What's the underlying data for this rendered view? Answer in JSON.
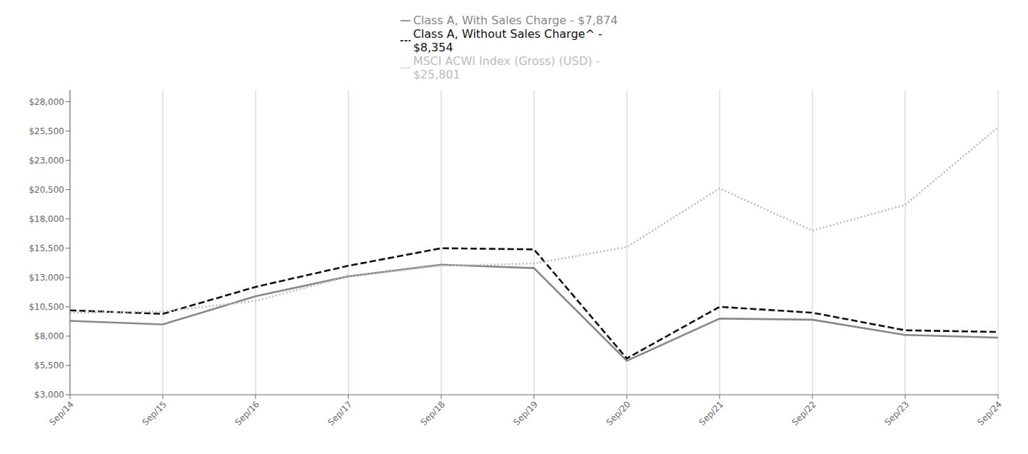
{
  "chart_data": {
    "type": "line",
    "categories": [
      "Sep/14",
      "Sep/15",
      "Sep/16",
      "Sep/17",
      "Sep/18",
      "Sep/19",
      "Sep/20",
      "Sep/21",
      "Sep/22",
      "Sep/23",
      "Sep/24"
    ],
    "series": [
      {
        "name": "Class A, With Sales Charge - $7,874",
        "color": "#888888",
        "line_style": "solid",
        "values": [
          9300,
          9000,
          11400,
          13100,
          14100,
          13800,
          5900,
          9500,
          9400,
          8100,
          7874
        ]
      },
      {
        "name": "Class A, Without Sales Charge^ -\n$8,354",
        "color": "#111111",
        "line_style": "dashed",
        "values": [
          10200,
          9900,
          12200,
          14000,
          15500,
          15400,
          6100,
          10500,
          10000,
          8500,
          8354
        ]
      },
      {
        "name": "MSCI ACWI Index (Gross) (USD) -\n$25,801",
        "color": "#bbbbbb",
        "line_style": "dotted",
        "values": [
          10000,
          10100,
          11000,
          13100,
          14000,
          14200,
          15600,
          20600,
          17000,
          19200,
          25801
        ]
      }
    ],
    "ylim": [
      3000,
      29000
    ],
    "yticks": [
      {
        "value": 3000,
        "label": "$3,000"
      },
      {
        "value": 5500,
        "label": "$5,500"
      },
      {
        "value": 8000,
        "label": "$8,000"
      },
      {
        "value": 10500,
        "label": "$10,500"
      },
      {
        "value": 13000,
        "label": "$13,000"
      },
      {
        "value": 15500,
        "label": "$15,500"
      },
      {
        "value": 18000,
        "label": "$18,000"
      },
      {
        "value": 20500,
        "label": "$20,500"
      },
      {
        "value": 23000,
        "label": "$23,000"
      },
      {
        "value": 25500,
        "label": "$25,500"
      },
      {
        "value": 28000,
        "label": "$28,000"
      }
    ],
    "grid": true,
    "legend": "top"
  }
}
